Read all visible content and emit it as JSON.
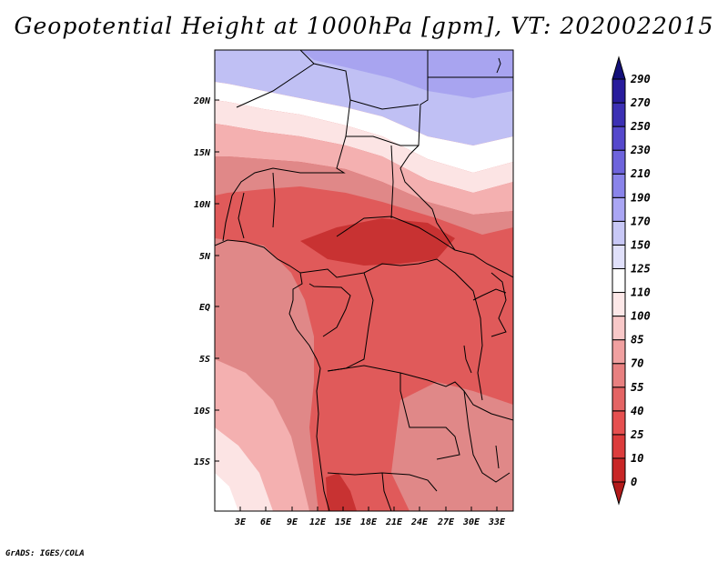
{
  "title": "Geopotential Height at 1000hPa [gpm], VT: 2020022015",
  "credit": "GrADS: IGES/COLA",
  "map": {
    "lat_labels": [
      "20N",
      "15N",
      "10N",
      "5N",
      "EQ",
      "5S",
      "10S",
      "15S"
    ],
    "lon_labels": [
      "3E",
      "6E",
      "9E",
      "12E",
      "15E",
      "18E",
      "21E",
      "24E",
      "27E",
      "30E",
      "33E"
    ]
  },
  "colorbar": {
    "levels": [
      "0",
      "10",
      "25",
      "40",
      "55",
      "70",
      "85",
      "100",
      "110",
      "125",
      "150",
      "170",
      "190",
      "210",
      "230",
      "250",
      "270",
      "290"
    ],
    "colors": [
      "#b21a1a",
      "#c82626",
      "#dc3c3c",
      "#e65050",
      "#e46464",
      "#e88080",
      "#f0a0a0",
      "#f8c8c8",
      "#fde8e8",
      "#ffffff",
      "#e0e0fa",
      "#c8c8f6",
      "#aaa6f4",
      "#8a84ea",
      "#6e64dc",
      "#5548cc",
      "#3c30b4",
      "#281c9c",
      "#14107a"
    ]
  },
  "palette": {
    "deep_red": "#c83232",
    "mid_red": "#e05a5a",
    "salmon": "#e08888",
    "pink": "#f4b0b0",
    "light_pink": "#fce4e4",
    "white": "#ffffff",
    "lavender": "#dcdcf8",
    "light_blue": "#c0c0f4",
    "blue": "#a8a4f0"
  }
}
